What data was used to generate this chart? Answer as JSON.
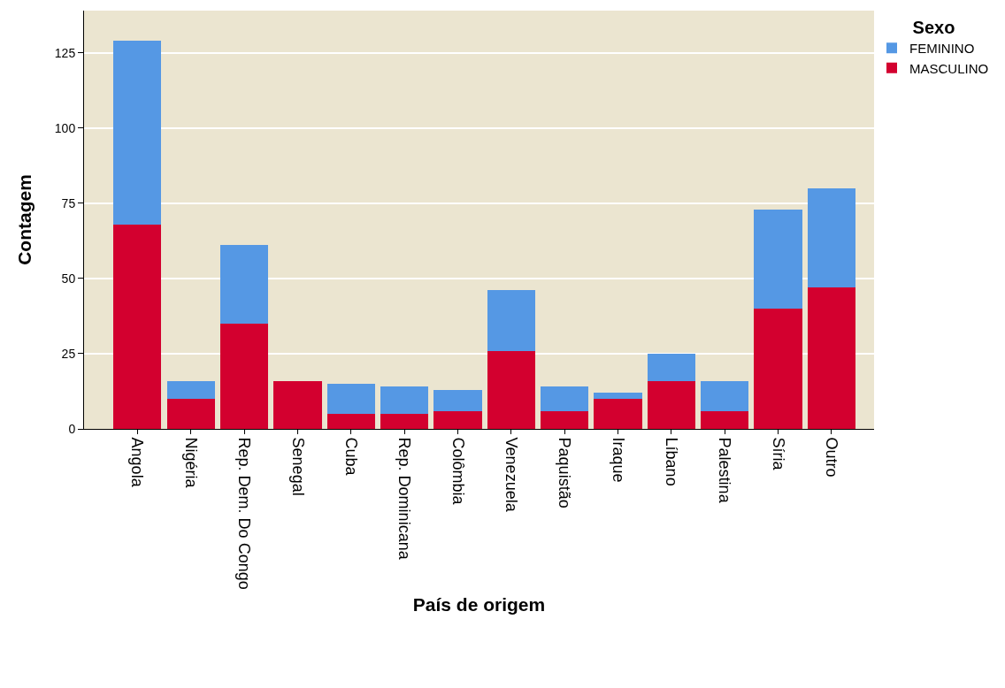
{
  "chart_data": {
    "type": "bar",
    "stacked": true,
    "xlabel": "País de origem",
    "ylabel": "Contagem",
    "legend_title": "Sexo",
    "legend": "top right",
    "grid": "y",
    "categories": [
      "Angola",
      "Nigéria",
      "Rep. Dem. Do Congo",
      "Senegal",
      "Cuba",
      "Rep. Dominicana",
      "Colômbia",
      "Venezuela",
      "Paquistão",
      "Iraque",
      "Líbano",
      "Palestina",
      "Síria",
      "Outro"
    ],
    "series": [
      {
        "name": "MASCULINO",
        "color": "#d3002f",
        "values": [
          68,
          10,
          35,
          16,
          5,
          5,
          6,
          26,
          6,
          10,
          16,
          6,
          40,
          47
        ]
      },
      {
        "name": "FEMININO",
        "color": "#5598e4",
        "values": [
          61,
          6,
          26,
          0,
          10,
          9,
          7,
          20,
          8,
          2,
          9,
          10,
          33,
          33
        ]
      }
    ],
    "ylim": [
      0,
      139
    ],
    "yticks": [
      0,
      25,
      50,
      75,
      100,
      125
    ]
  }
}
